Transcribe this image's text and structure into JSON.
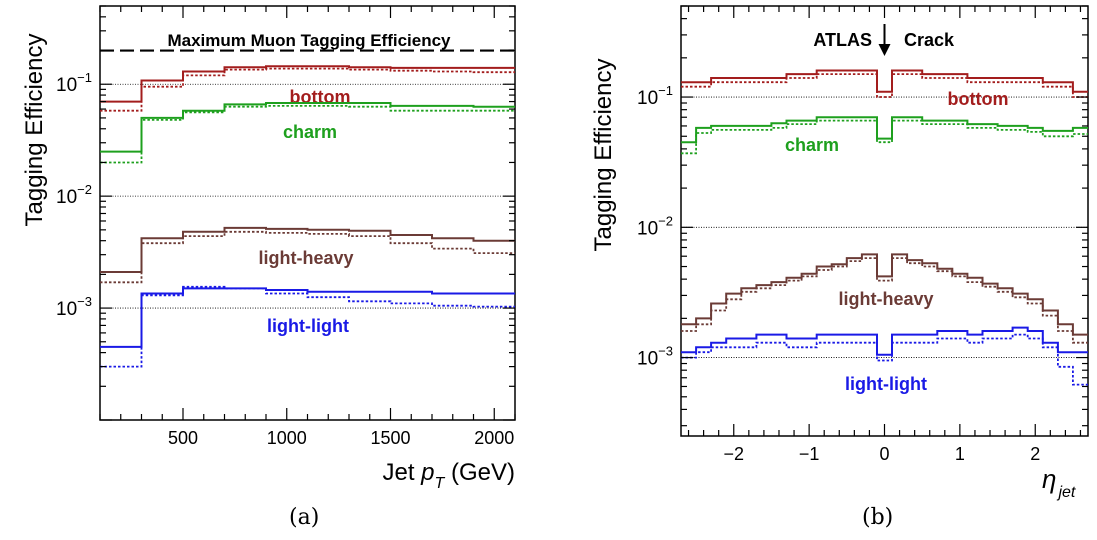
{
  "chart_data": [
    {
      "type": "step-line",
      "panel_label": "(a)",
      "ylabel": "Tagging Efficiency",
      "xlabel_main": "Jet ",
      "xlabel_sym": "p",
      "xlabel_sub": "T",
      "xlabel_unit": " (GeV)",
      "yscale": "log",
      "xlim": [
        100,
        2100
      ],
      "ylim": [
        0.0001,
        0.5
      ],
      "xticks": [
        500,
        1000,
        1500,
        2000
      ],
      "yticks": [
        {
          "base": "10",
          "exp": "−3",
          "value": 0.001
        },
        {
          "base": "10",
          "exp": "−2",
          "value": 0.01
        },
        {
          "base": "10",
          "exp": "−1",
          "value": 0.1
        }
      ],
      "reference_line": {
        "value": 0.2,
        "label": "Maximum Muon Tagging Efficiency"
      },
      "grid_y": [
        0.001,
        0.01,
        0.1
      ],
      "bin_edges": [
        100,
        300,
        500,
        700,
        900,
        1100,
        1300,
        1500,
        1700,
        1900,
        2100
      ],
      "series": [
        {
          "name": "bottom",
          "color": "#a31d1d",
          "solid": [
            0.07,
            0.108,
            0.13,
            0.142,
            0.145,
            0.145,
            0.142,
            0.14,
            0.14,
            0.14
          ],
          "dotted": [
            0.058,
            0.095,
            0.12,
            0.135,
            0.138,
            0.138,
            0.135,
            0.132,
            0.13,
            0.128
          ]
        },
        {
          "name": "charm",
          "color": "#1ea01e",
          "solid": [
            0.025,
            0.05,
            0.058,
            0.066,
            0.068,
            0.068,
            0.068,
            0.064,
            0.064,
            0.063
          ],
          "dotted": [
            0.02,
            0.048,
            0.056,
            0.063,
            0.064,
            0.064,
            0.063,
            0.058,
            0.058,
            0.058
          ]
        },
        {
          "name": "light-heavy",
          "color": "#6b3b36",
          "solid": [
            0.0021,
            0.0042,
            0.0048,
            0.0052,
            0.0051,
            0.005,
            0.0049,
            0.0045,
            0.0042,
            0.004
          ],
          "dotted": [
            0.0017,
            0.0038,
            0.0044,
            0.0048,
            0.0047,
            0.0046,
            0.0044,
            0.0038,
            0.0034,
            0.0031
          ]
        },
        {
          "name": "light-light",
          "color": "#1a1ae6",
          "solid": [
            0.00045,
            0.00135,
            0.0015,
            0.0015,
            0.00145,
            0.0014,
            0.0014,
            0.0014,
            0.00135,
            0.00135
          ],
          "dotted": [
            0.0003,
            0.0013,
            0.00155,
            0.0015,
            0.00135,
            0.00125,
            0.00115,
            0.0011,
            0.00105,
            0.00103
          ]
        }
      ]
    },
    {
      "type": "step-line",
      "panel_label": "(b)",
      "ylabel": "Tagging Efficiency",
      "xlabel_sym": "η",
      "xlabel_sub": "jet",
      "yscale": "log",
      "xlim": [
        -2.7,
        2.7
      ],
      "ylim": [
        0.00025,
        0.5
      ],
      "xticks": [
        -2,
        -1,
        0,
        1,
        2
      ],
      "xtick_labels": [
        "−2",
        "−1",
        "0",
        "1",
        "2"
      ],
      "yticks": [
        {
          "base": "10",
          "exp": "−3",
          "value": 0.001
        },
        {
          "base": "10",
          "exp": "−2",
          "value": 0.01
        },
        {
          "base": "10",
          "exp": "−1",
          "value": 0.1
        }
      ],
      "grid_y": [
        0.001,
        0.01,
        0.1
      ],
      "annotation": {
        "left": "ATLAS",
        "right": "Crack"
      },
      "bin_edges": [
        -2.7,
        -2.5,
        -2.3,
        -2.1,
        -1.9,
        -1.7,
        -1.5,
        -1.3,
        -1.1,
        -0.9,
        -0.7,
        -0.5,
        -0.3,
        -0.1,
        0.1,
        0.3,
        0.5,
        0.7,
        0.9,
        1.1,
        1.3,
        1.5,
        1.7,
        1.9,
        2.1,
        2.3,
        2.5,
        2.7
      ],
      "series": [
        {
          "name": "bottom",
          "color": "#a31d1d",
          "solid": [
            0.13,
            0.13,
            0.14,
            0.14,
            0.14,
            0.14,
            0.14,
            0.15,
            0.15,
            0.16,
            0.16,
            0.16,
            0.16,
            0.11,
            0.16,
            0.16,
            0.15,
            0.15,
            0.15,
            0.14,
            0.14,
            0.14,
            0.14,
            0.14,
            0.13,
            0.13,
            0.11
          ],
          "dotted": [
            0.12,
            0.12,
            0.13,
            0.13,
            0.13,
            0.13,
            0.13,
            0.14,
            0.14,
            0.15,
            0.15,
            0.15,
            0.15,
            0.1,
            0.15,
            0.15,
            0.14,
            0.14,
            0.14,
            0.13,
            0.13,
            0.13,
            0.13,
            0.13,
            0.12,
            0.12,
            0.1
          ]
        },
        {
          "name": "charm",
          "color": "#1ea01e",
          "solid": [
            0.045,
            0.058,
            0.06,
            0.06,
            0.06,
            0.06,
            0.063,
            0.066,
            0.066,
            0.07,
            0.07,
            0.07,
            0.07,
            0.048,
            0.07,
            0.07,
            0.066,
            0.066,
            0.066,
            0.062,
            0.062,
            0.06,
            0.06,
            0.058,
            0.055,
            0.055,
            0.058
          ],
          "dotted": [
            0.037,
            0.053,
            0.056,
            0.056,
            0.056,
            0.056,
            0.058,
            0.062,
            0.062,
            0.066,
            0.066,
            0.066,
            0.066,
            0.045,
            0.066,
            0.066,
            0.062,
            0.062,
            0.062,
            0.058,
            0.058,
            0.056,
            0.056,
            0.054,
            0.05,
            0.05,
            0.052
          ]
        },
        {
          "name": "light-heavy",
          "color": "#6b3b36",
          "solid": [
            0.0018,
            0.002,
            0.0026,
            0.0031,
            0.0034,
            0.0036,
            0.0038,
            0.0041,
            0.0044,
            0.005,
            0.0052,
            0.0058,
            0.0062,
            0.0042,
            0.0062,
            0.0056,
            0.0053,
            0.0048,
            0.0044,
            0.0041,
            0.0037,
            0.0034,
            0.0031,
            0.0028,
            0.0023,
            0.0018,
            0.0015
          ],
          "dotted": [
            0.0016,
            0.0018,
            0.0023,
            0.0028,
            0.0032,
            0.0034,
            0.0036,
            0.0039,
            0.0042,
            0.0047,
            0.005,
            0.0055,
            0.0058,
            0.0039,
            0.0058,
            0.0053,
            0.005,
            0.0046,
            0.0042,
            0.0038,
            0.0035,
            0.0032,
            0.0029,
            0.0026,
            0.0021,
            0.0016,
            0.0013
          ]
        },
        {
          "name": "light-light",
          "color": "#1a1ae6",
          "solid": [
            0.0011,
            0.0012,
            0.0013,
            0.0014,
            0.0014,
            0.0015,
            0.0015,
            0.0014,
            0.0014,
            0.0015,
            0.0015,
            0.0015,
            0.0015,
            0.00105,
            0.0015,
            0.0015,
            0.0015,
            0.0016,
            0.0016,
            0.0015,
            0.0016,
            0.0016,
            0.0017,
            0.0016,
            0.0013,
            0.0011,
            0.0011
          ],
          "dotted": [
            0.001,
            0.0011,
            0.0012,
            0.0012,
            0.0012,
            0.0013,
            0.0013,
            0.0012,
            0.0012,
            0.0013,
            0.0013,
            0.0013,
            0.0013,
            0.00095,
            0.0013,
            0.0013,
            0.0013,
            0.0014,
            0.0014,
            0.0013,
            0.0014,
            0.0014,
            0.0015,
            0.0014,
            0.0012,
            0.00085,
            0.00062
          ]
        }
      ]
    }
  ]
}
